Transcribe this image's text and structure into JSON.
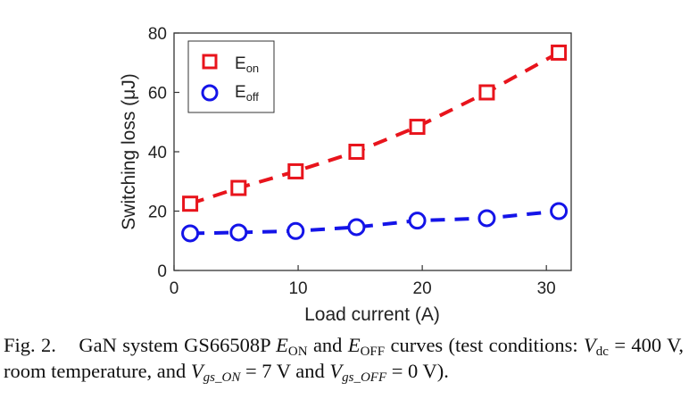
{
  "chart_data": {
    "type": "line",
    "xlabel": "Load current (A)",
    "ylabel": "Switching loss (μJ)",
    "xlim": [
      0,
      32
    ],
    "ylim": [
      0,
      80
    ],
    "xticks": [
      "0",
      "10",
      "20",
      "30"
    ],
    "yticks": [
      "0",
      "20",
      "40",
      "60",
      "80"
    ],
    "grid": false,
    "legend_position": "top-left",
    "series": [
      {
        "name": "Eon",
        "name_main": "E",
        "name_sub": "on",
        "color": "#e8141c",
        "marker": "square",
        "line": "dashed",
        "x": [
          1.3,
          5.2,
          9.8,
          14.7,
          19.6,
          25.2,
          31.0
        ],
        "y": [
          22.5,
          27.8,
          33.4,
          40.0,
          48.4,
          60.0,
          73.4
        ]
      },
      {
        "name": "Eoff",
        "name_main": "E",
        "name_sub": "off",
        "color": "#1414e8",
        "marker": "circle",
        "line": "dashed",
        "x": [
          1.3,
          5.2,
          9.8,
          14.7,
          19.6,
          25.2,
          31.0
        ],
        "y": [
          12.5,
          12.8,
          13.3,
          14.6,
          16.8,
          17.6,
          20.0
        ]
      }
    ]
  },
  "caption": {
    "label": "Fig. 2.",
    "line1": "GaN system GS66508P",
    "eon_main": "E",
    "eon_sub": "ON",
    "and1": "and",
    "eoff_main": "E",
    "eoff_sub": "OFF",
    "line1_end": "curves (test conditions:",
    "vdc_main": "V",
    "vdc_sub": "dc",
    "line2_a": "= 400 V, room temperature, and",
    "vgson_main": "V",
    "vgson_sub": "gs_ON",
    "line2_b": "= 7 V and",
    "vgsoff_main": "V",
    "vgsoff_sub": "gs_OFF",
    "line2_c": "= 0 V)."
  }
}
